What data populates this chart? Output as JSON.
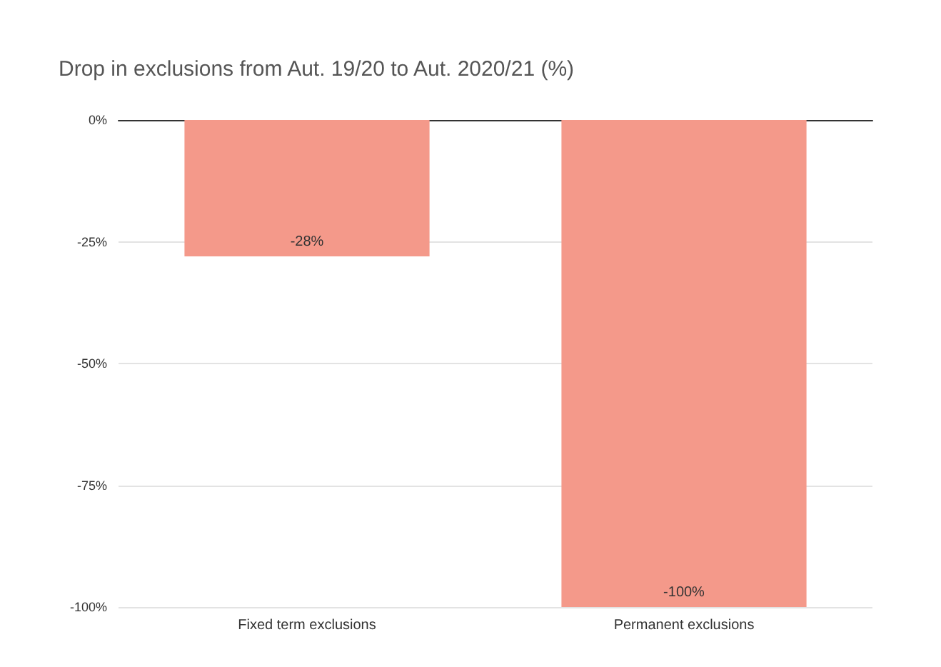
{
  "chart_data": {
    "type": "bar",
    "title": "Drop in exclusions from Aut. 19/20 to Aut. 2020/21 (%)",
    "categories": [
      "Fixed term exclusions",
      "Permanent exclusions"
    ],
    "values": [
      -28,
      -100
    ],
    "value_labels": [
      "-28%",
      "-100%"
    ],
    "color": "#f4998a",
    "ylim": [
      -100,
      0
    ],
    "yticks": [
      {
        "value": 0,
        "label": "0%"
      },
      {
        "value": -25,
        "label": "-25%"
      },
      {
        "value": -50,
        "label": "-50%"
      },
      {
        "value": -75,
        "label": "-75%"
      },
      {
        "value": -100,
        "label": "-100%"
      }
    ],
    "grid": "y"
  }
}
